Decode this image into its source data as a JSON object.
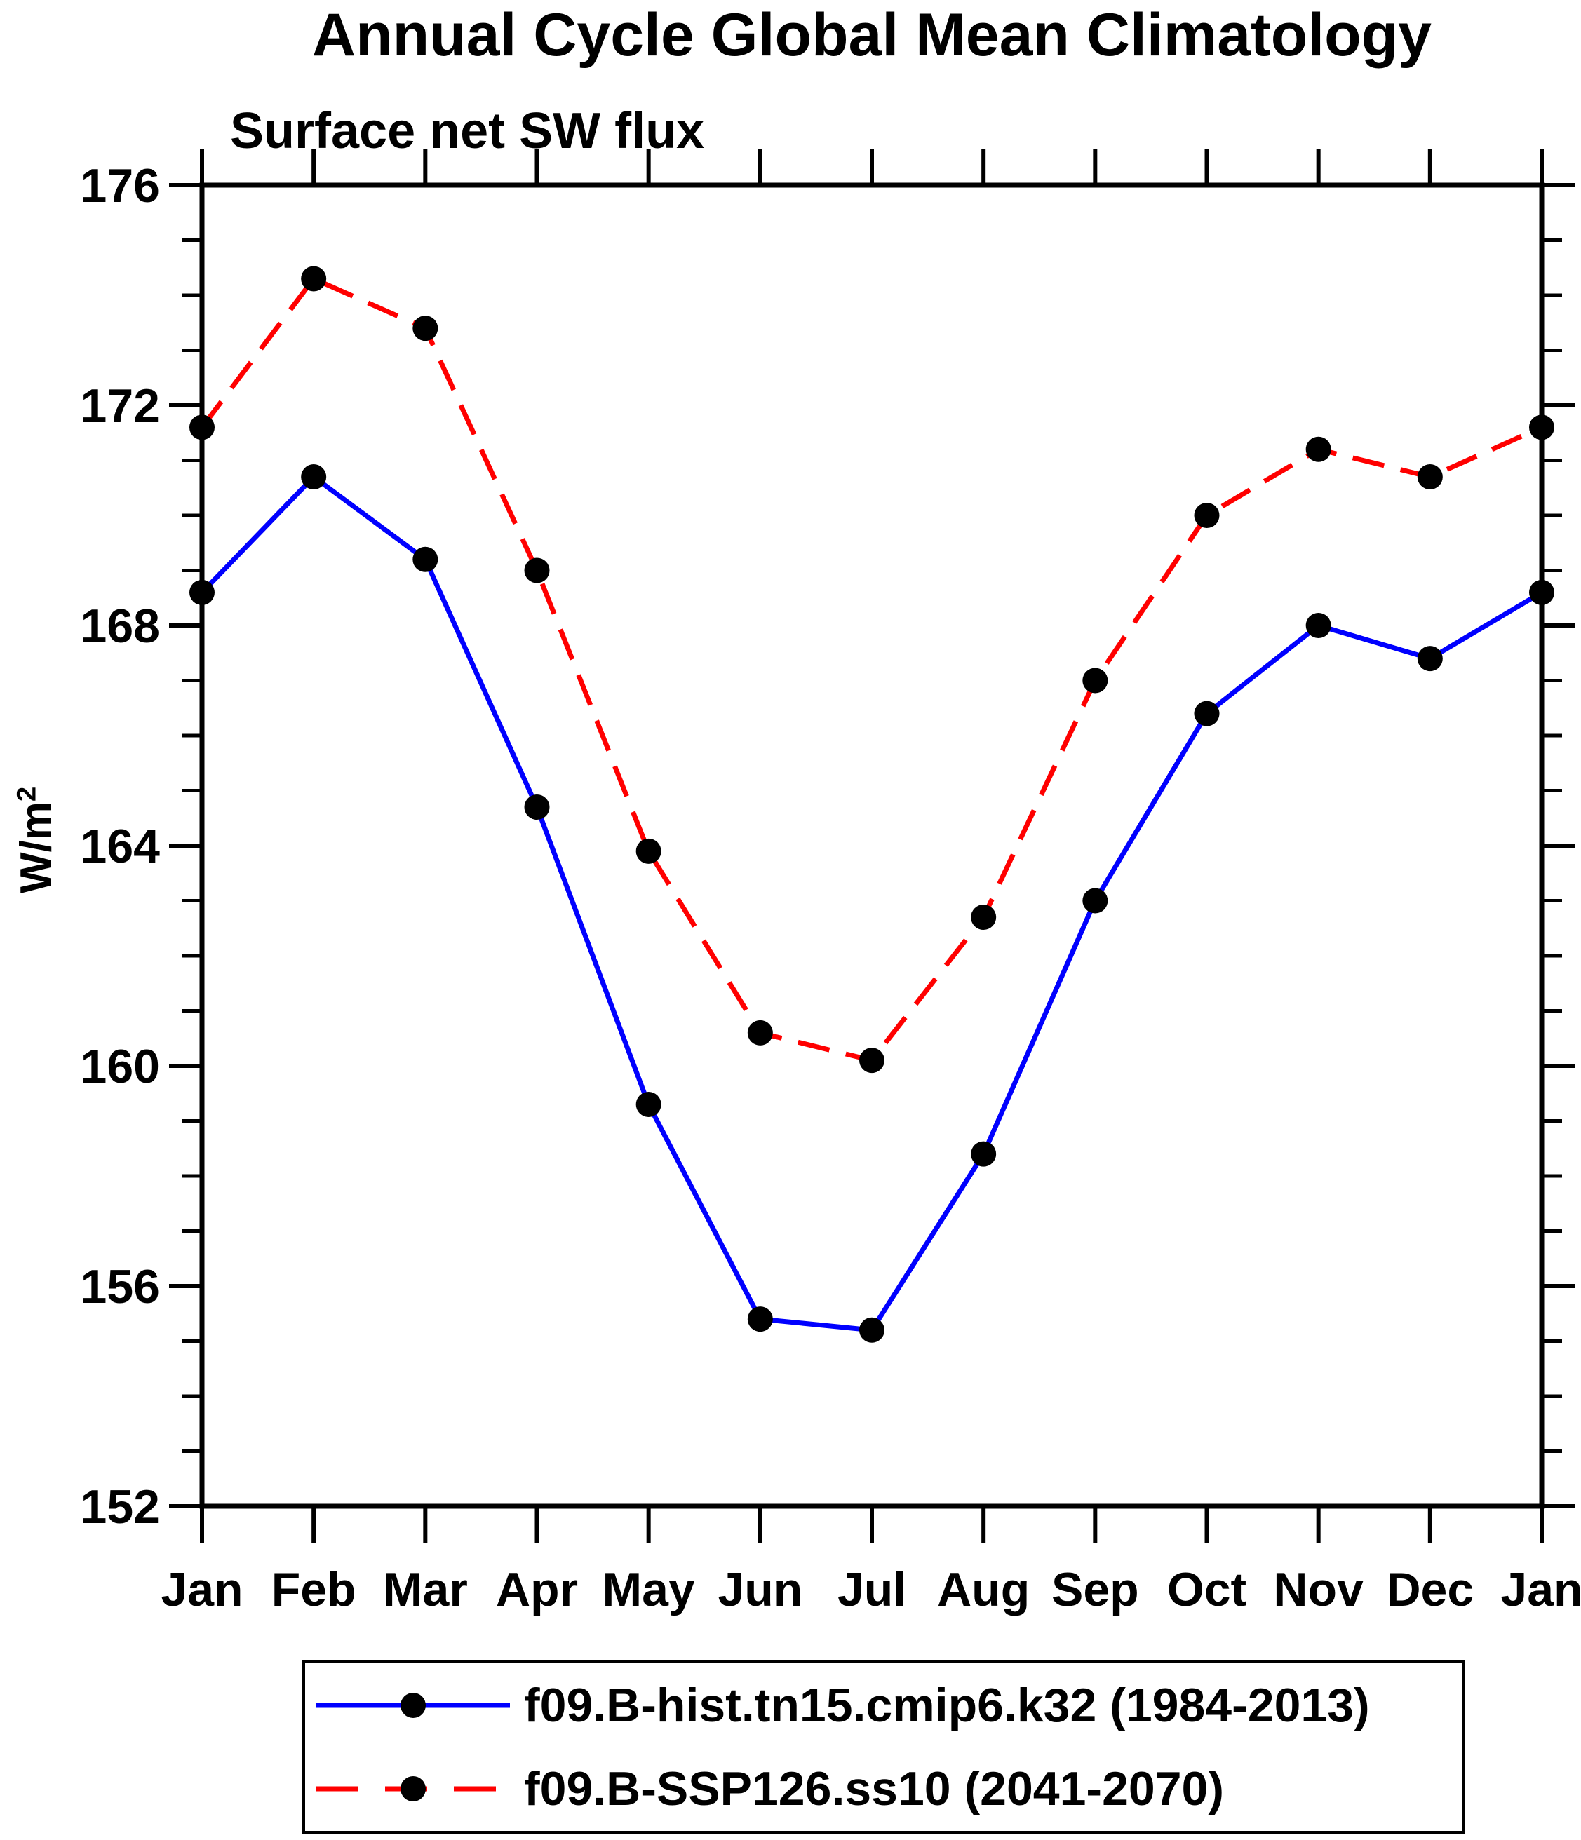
{
  "title": "Annual Cycle Global Mean Climatology",
  "subtitle": "Surface net SW flux",
  "y_axis": {
    "label_base": "W/m",
    "label_exponent": "2",
    "tick_labels": [
      "176",
      "172",
      "168",
      "164",
      "160",
      "156",
      "152"
    ]
  },
  "chart_data": {
    "type": "line",
    "title": "Annual Cycle Global Mean Climatology",
    "subtitle": "Surface net SW flux",
    "ylabel": "W/m2",
    "xlabel": "",
    "categories": [
      "Jan",
      "Feb",
      "Mar",
      "Apr",
      "May",
      "Jun",
      "Jul",
      "Aug",
      "Sep",
      "Oct",
      "Nov",
      "Dec",
      "Jan"
    ],
    "ylim": [
      152,
      176
    ],
    "yticks_major": [
      152,
      156,
      160,
      164,
      168,
      172,
      176
    ],
    "ytick_minor_step": 1,
    "grid": false,
    "legend_position": "bottom",
    "axis_color": "#000000",
    "series": [
      {
        "name": "f09.B-hist.tn15.cmip6.k32 (1984-2013)",
        "color": "#0000ff",
        "line_style": "solid",
        "marker": "filled-circle",
        "marker_color": "#000000",
        "values": [
          168.6,
          170.7,
          169.2,
          164.7,
          159.3,
          155.4,
          155.2,
          158.4,
          163.0,
          166.4,
          168.0,
          167.4,
          168.6
        ]
      },
      {
        "name": "f09.B-SSP126.ss10 (2041-2070)",
        "color": "#ff0000",
        "line_style": "dashed",
        "marker": "filled-circle",
        "marker_color": "#000000",
        "values": [
          171.6,
          174.3,
          173.4,
          169.0,
          163.9,
          160.6,
          160.1,
          162.7,
          167.0,
          170.0,
          171.2,
          170.7,
          171.6
        ]
      }
    ]
  }
}
